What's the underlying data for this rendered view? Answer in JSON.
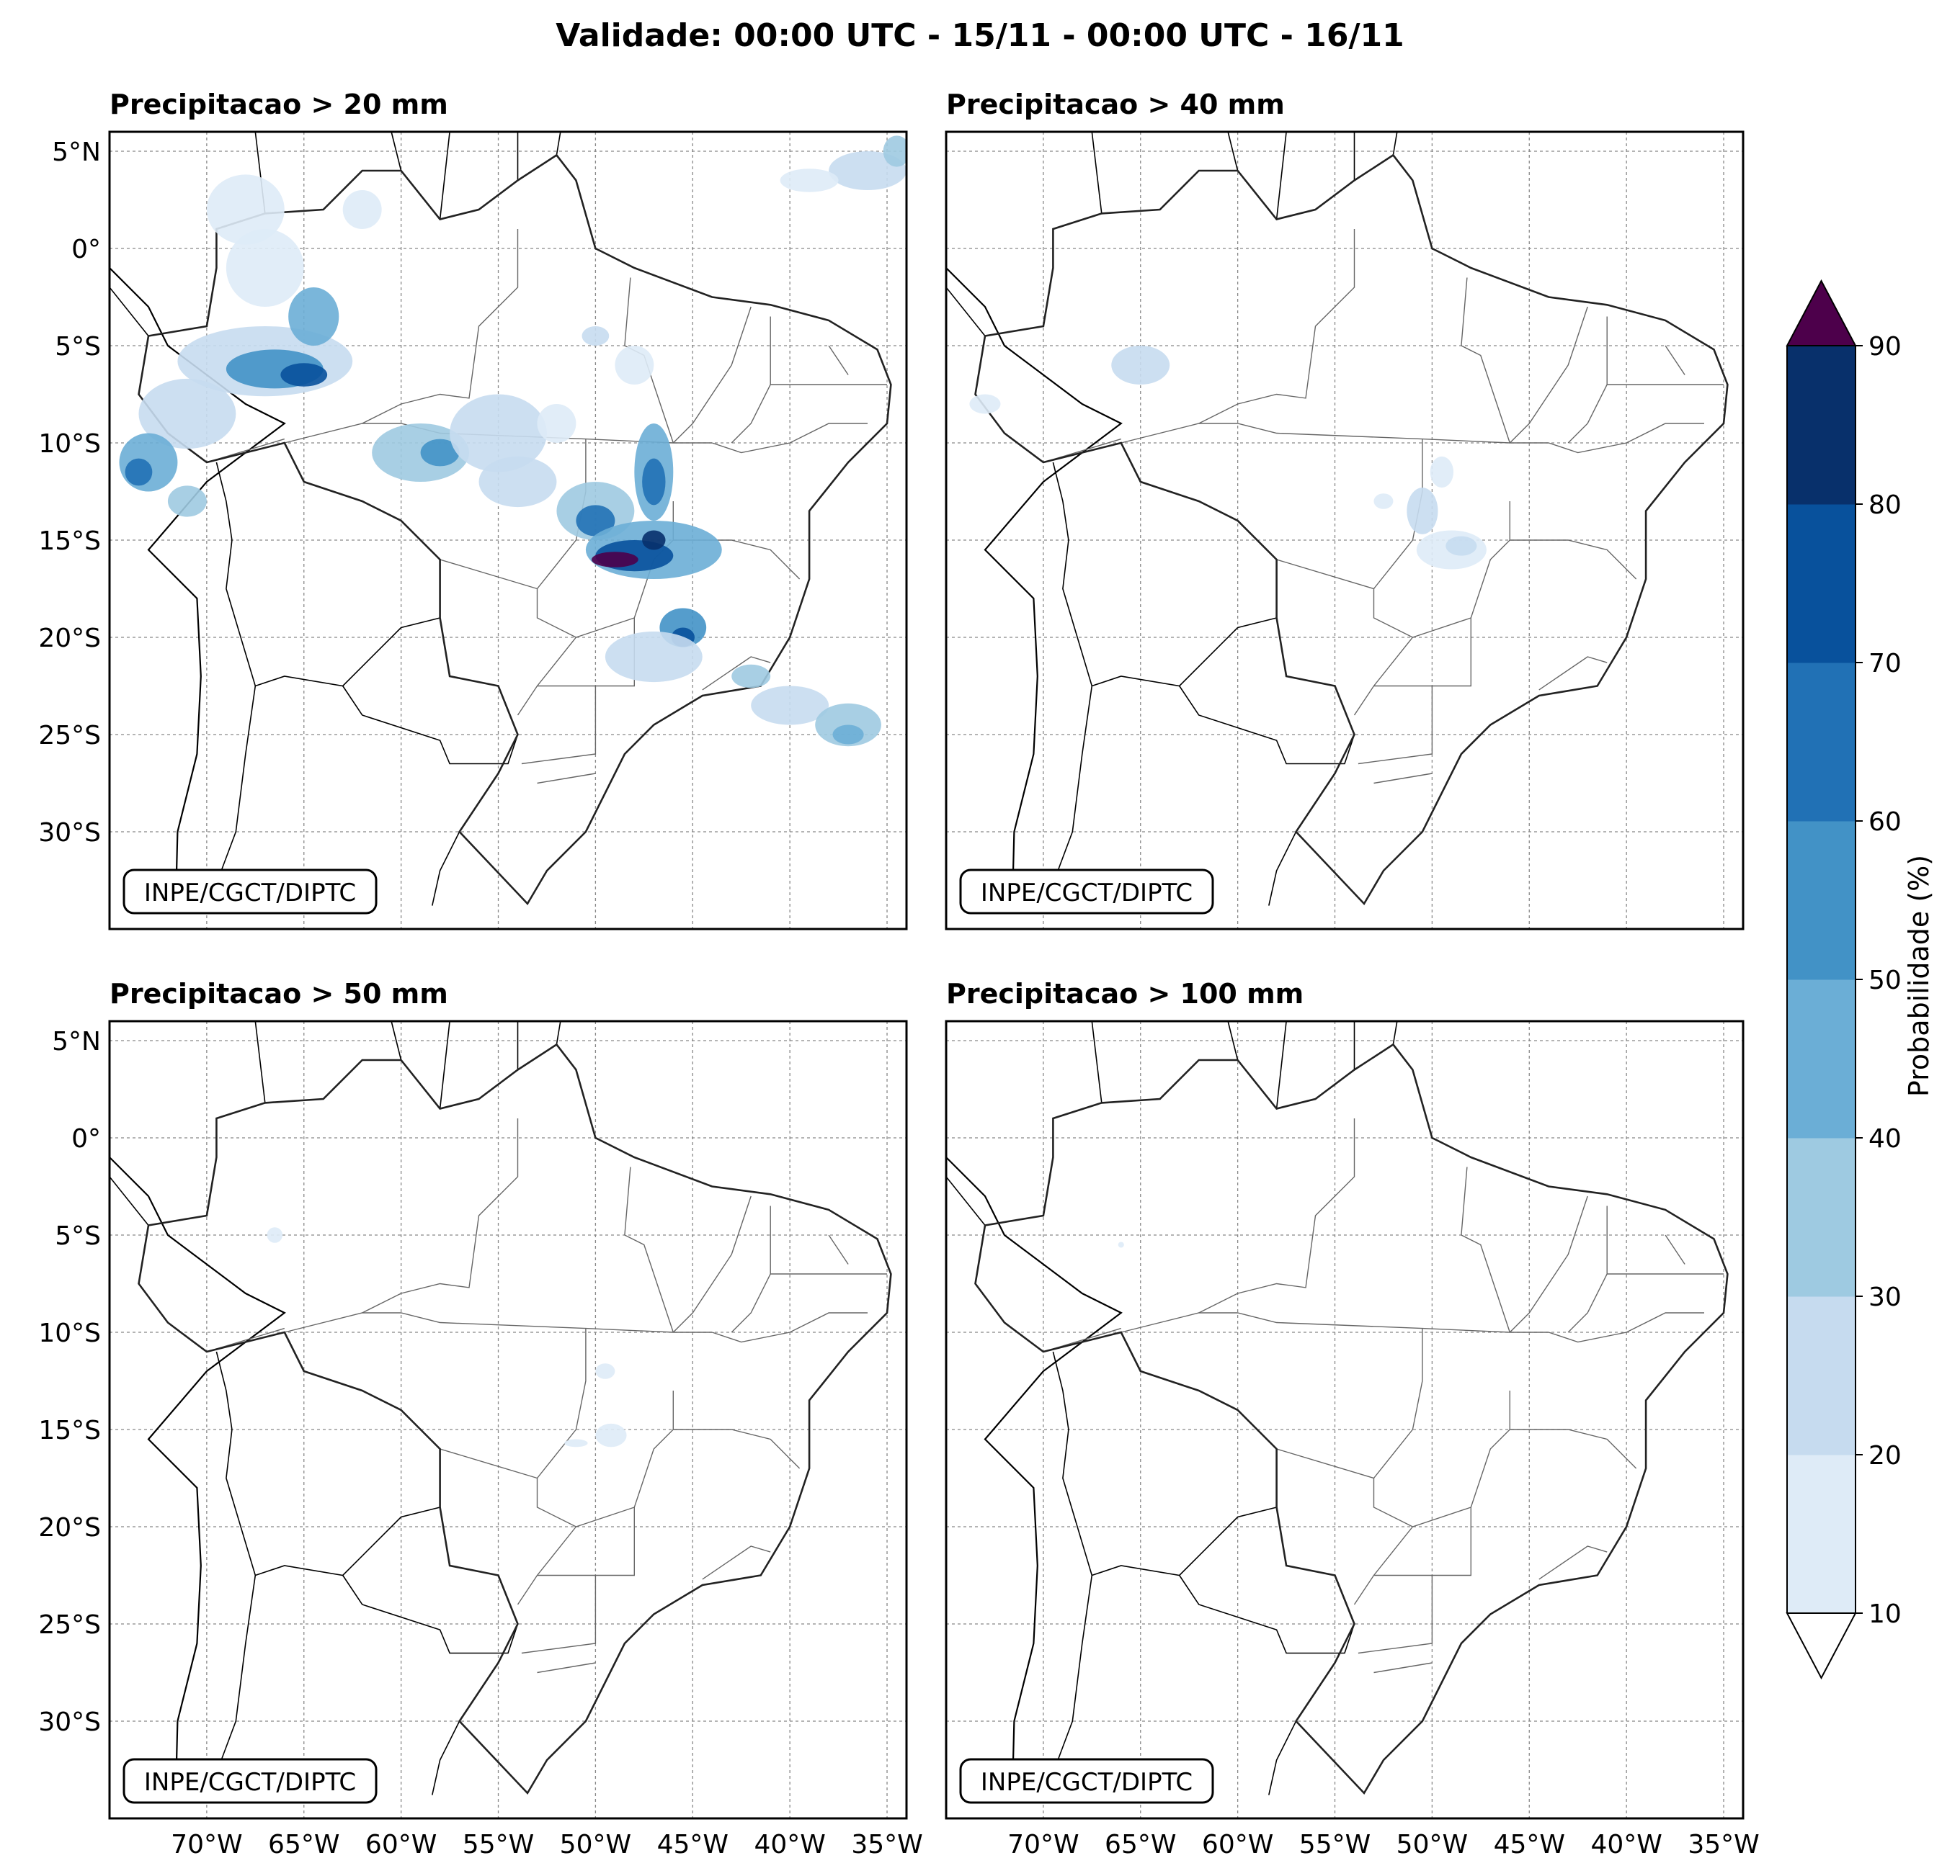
{
  "figure": {
    "title": "Validade: 00:00 UTC - 15/11 - 00:00 UTC - 16/11"
  },
  "panels": [
    {
      "title": "Precipitacao > 20 mm",
      "credit": "INPE/CGCT/DIPTC"
    },
    {
      "title": "Precipitacao > 40 mm",
      "credit": "INPE/CGCT/DIPTC"
    },
    {
      "title": "Precipitacao > 50 mm",
      "credit": "INPE/CGCT/DIPTC"
    },
    {
      "title": "Precipitacao > 100 mm",
      "credit": "INPE/CGCT/DIPTC"
    }
  ],
  "axes": {
    "lon_ticks": [
      {
        "value": -70,
        "label": "70°W"
      },
      {
        "value": -65,
        "label": "65°W"
      },
      {
        "value": -60,
        "label": "60°W"
      },
      {
        "value": -55,
        "label": "55°W"
      },
      {
        "value": -50,
        "label": "50°W"
      },
      {
        "value": -45,
        "label": "45°W"
      },
      {
        "value": -40,
        "label": "40°W"
      },
      {
        "value": -35,
        "label": "35°W"
      }
    ],
    "lat_ticks": [
      {
        "value": 5,
        "label": "5°N"
      },
      {
        "value": 0,
        "label": "0°"
      },
      {
        "value": -5,
        "label": "5°S"
      },
      {
        "value": -10,
        "label": "10°S"
      },
      {
        "value": -15,
        "label": "15°S"
      },
      {
        "value": -20,
        "label": "20°S"
      },
      {
        "value": -25,
        "label": "25°S"
      },
      {
        "value": -30,
        "label": "30°S"
      }
    ],
    "lon_range": [
      -75,
      -34
    ],
    "lat_range": [
      -35,
      6
    ],
    "grid": true
  },
  "colorbar": {
    "label": "Probabilidade (%)",
    "ticks": [
      10,
      20,
      30,
      40,
      50,
      60,
      70,
      80,
      90
    ],
    "colors": [
      "#deebf7",
      "#c6dbef",
      "#9ecae1",
      "#6baed6",
      "#4292c6",
      "#2171b5",
      "#08519c",
      "#08306b"
    ],
    "over_color": "#4d004b",
    "under_color": "#ffffff"
  }
}
